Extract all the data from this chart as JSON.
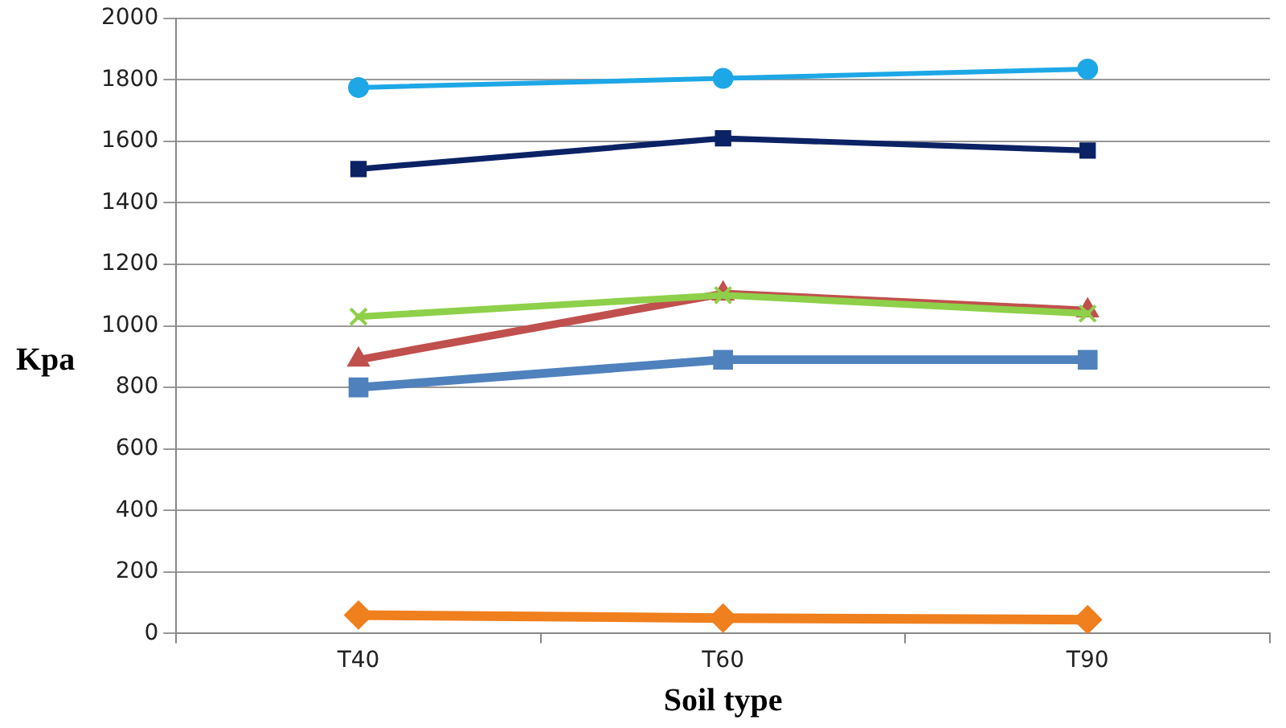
{
  "chart_data": {
    "type": "line",
    "xlabel": "Soil type",
    "ylabel": "Kpa",
    "categories": [
      "T40",
      "T60",
      "T90"
    ],
    "ylim": [
      0,
      2000
    ],
    "yticks": [
      0,
      200,
      400,
      600,
      800,
      1000,
      1200,
      1400,
      1600,
      1800,
      2000
    ],
    "grid": "y",
    "legend": false,
    "series": [
      {
        "color": "#1ea7e6",
        "marker": "circle",
        "values": [
          1775,
          1805,
          1835
        ]
      },
      {
        "color": "#0b2265",
        "marker": "square",
        "values": [
          1510,
          1610,
          1570
        ]
      },
      {
        "color": "#8ed04a",
        "marker": "cross",
        "values": [
          1030,
          1100,
          1040
        ]
      },
      {
        "color": "#c0504d",
        "marker": "triangle",
        "values": [
          890,
          1105,
          1050
        ]
      },
      {
        "color": "#4f81bd",
        "marker": "square",
        "values": [
          800,
          890,
          890
        ]
      },
      {
        "color": "#f07f1e",
        "marker": "diamond",
        "values": [
          60,
          50,
          45
        ]
      }
    ]
  }
}
